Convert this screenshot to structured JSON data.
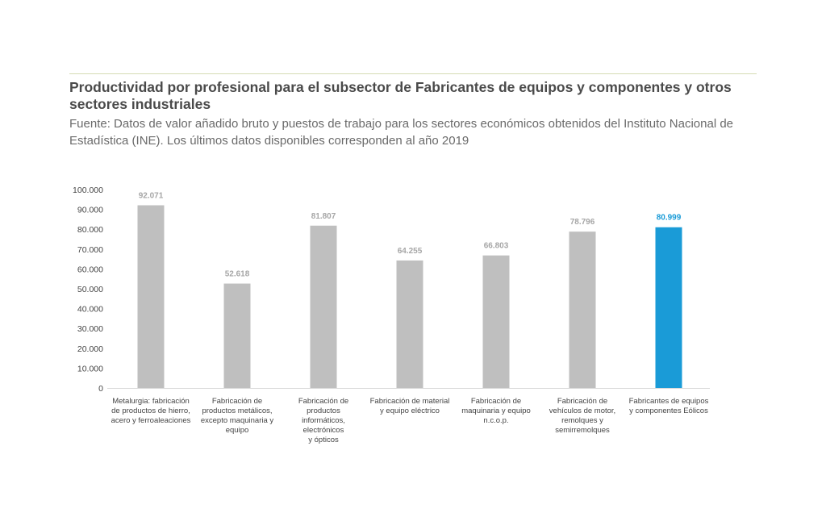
{
  "chart_data": {
    "type": "bar",
    "title": "Productividad por profesional para el subsector de Fabricantes de equipos y componentes y otros sectores industriales",
    "subtitle": "Fuente: Datos de valor añadido bruto y puestos de trabajo para los sectores económicos obtenidos del Instituto Nacional de Estadística (INE). Los últimos datos disponibles corresponden al año 2019",
    "categories": [
      [
        "Metalurgia: fabricación",
        "de productos de hierro,",
        "acero y ferroaleaciones"
      ],
      [
        "Fabricación de",
        "productos metálicos,",
        "excepto maquinaria y",
        "equipo"
      ],
      [
        "Fabricación de",
        "productos",
        "informáticos,",
        "electrónicos",
        "y ópticos"
      ],
      [
        "Fabricación de material",
        "y equipo eléctrico"
      ],
      [
        "Fabricación de",
        "maquinaria y equipo",
        "n.c.o.p."
      ],
      [
        "Fabricación de",
        "vehículos de motor,",
        "remolques y",
        "semirremolques"
      ],
      [
        "Fabricantes de equipos",
        "y componentes Eólicos"
      ]
    ],
    "values": [
      92071,
      52618,
      81807,
      64255,
      66803,
      78796,
      80999
    ],
    "value_labels": [
      "92.071",
      "52.618",
      "81.807",
      "64.255",
      "66.803",
      "78.796",
      "80.999"
    ],
    "ylim": [
      0,
      100000
    ],
    "yticks": [
      "0",
      "10.000",
      "20.000",
      "30.000",
      "40.000",
      "50.000",
      "60.000",
      "70.000",
      "80.000",
      "90.000",
      "100.000"
    ],
    "grid": false,
    "colors": {
      "default_bar": "#bfbfbf",
      "highlight_bar": "#1a9bd7",
      "default_label": "#a6a6a6",
      "highlight_label": "#1a9bd7"
    },
    "highlight_index": 6
  }
}
